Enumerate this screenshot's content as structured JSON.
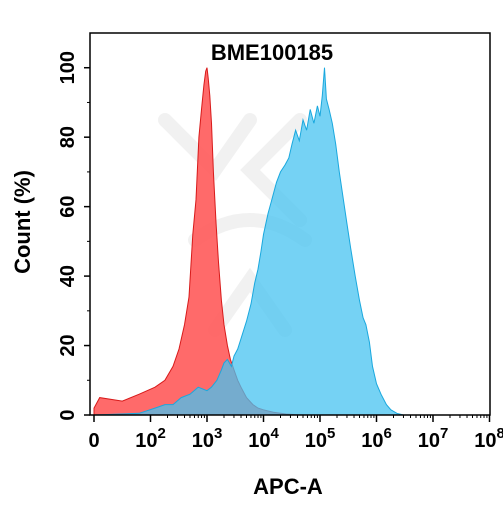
{
  "chart_data": {
    "type": "area",
    "title": "BME100185",
    "xlabel": "APC-A",
    "ylabel": "Count (%)",
    "xscale": "biexponential",
    "xlim": [
      0,
      100000000
    ],
    "ylim": [
      0,
      110
    ],
    "x_ticks": [
      {
        "value": 0,
        "base": "0",
        "exp": ""
      },
      {
        "value": 100,
        "base": "10",
        "exp": "2"
      },
      {
        "value": 1000,
        "base": "10",
        "exp": "3"
      },
      {
        "value": 10000,
        "base": "10",
        "exp": "4"
      },
      {
        "value": 100000,
        "base": "10",
        "exp": "5"
      },
      {
        "value": 1000000,
        "base": "10",
        "exp": "6"
      },
      {
        "value": 10000000,
        "base": "10",
        "exp": "7"
      },
      {
        "value": 100000000,
        "base": "10",
        "exp": "8"
      }
    ],
    "y_ticks": [
      0,
      20,
      40,
      60,
      80,
      100
    ],
    "grid": false,
    "series": [
      {
        "color": "#ff5a5a",
        "stroke": "#d81a1a",
        "points": [
          [
            0,
            2
          ],
          [
            10,
            5
          ],
          [
            50,
            4
          ],
          [
            80,
            6
          ],
          [
            120,
            8
          ],
          [
            180,
            10
          ],
          [
            250,
            14
          ],
          [
            320,
            19
          ],
          [
            400,
            26
          ],
          [
            480,
            34
          ],
          [
            560,
            52
          ],
          [
            640,
            62
          ],
          [
            720,
            80
          ],
          [
            800,
            88
          ],
          [
            880,
            95
          ],
          [
            950,
            99
          ],
          [
            1000,
            100
          ],
          [
            1050,
            97
          ],
          [
            1120,
            92
          ],
          [
            1200,
            84
          ],
          [
            1300,
            70
          ],
          [
            1450,
            55
          ],
          [
            1600,
            44
          ],
          [
            1800,
            33
          ],
          [
            2000,
            26
          ],
          [
            2300,
            20
          ],
          [
            2600,
            16
          ],
          [
            3000,
            13
          ],
          [
            3500,
            10
          ],
          [
            4000,
            8
          ],
          [
            5000,
            5
          ],
          [
            6500,
            3
          ],
          [
            8000,
            2
          ],
          [
            10000,
            1.5
          ],
          [
            15000,
            0.8
          ],
          [
            25000,
            0.3
          ],
          [
            40000,
            0.1
          ],
          [
            60000,
            0
          ]
        ]
      },
      {
        "color": "#47c3f0",
        "stroke": "#1aa8de",
        "points": [
          [
            0,
            0
          ],
          [
            80,
            0.5
          ],
          [
            120,
            2
          ],
          [
            180,
            3
          ],
          [
            250,
            3
          ],
          [
            350,
            5
          ],
          [
            500,
            6
          ],
          [
            700,
            8
          ],
          [
            1000,
            7
          ],
          [
            1200,
            8
          ],
          [
            1500,
            10
          ],
          [
            1800,
            13
          ],
          [
            2000,
            15
          ],
          [
            2300,
            16
          ],
          [
            2700,
            14
          ],
          [
            3000,
            17
          ],
          [
            3500,
            19
          ],
          [
            4000,
            22
          ],
          [
            5000,
            27
          ],
          [
            6000,
            32
          ],
          [
            7000,
            38
          ],
          [
            8000,
            42
          ],
          [
            9000,
            47
          ],
          [
            10000,
            52
          ],
          [
            12000,
            58
          ],
          [
            14000,
            62
          ],
          [
            17000,
            67
          ],
          [
            20000,
            70
          ],
          [
            24000,
            72
          ],
          [
            28000,
            74
          ],
          [
            32000,
            78
          ],
          [
            37000,
            82
          ],
          [
            43000,
            79
          ],
          [
            50000,
            85
          ],
          [
            58000,
            82
          ],
          [
            67000,
            88
          ],
          [
            78000,
            84
          ],
          [
            90000,
            89
          ],
          [
            100000,
            86
          ],
          [
            110000,
            92
          ],
          [
            120000,
            100
          ],
          [
            130000,
            91
          ],
          [
            145000,
            88
          ],
          [
            165000,
            84
          ],
          [
            190000,
            78
          ],
          [
            220000,
            70
          ],
          [
            260000,
            62
          ],
          [
            300000,
            55
          ],
          [
            350000,
            48
          ],
          [
            420000,
            40
          ],
          [
            500000,
            33
          ],
          [
            580000,
            28
          ],
          [
            650000,
            26
          ],
          [
            750000,
            21
          ],
          [
            850000,
            14
          ],
          [
            1000000,
            9
          ],
          [
            1200000,
            6
          ],
          [
            1500000,
            3
          ],
          [
            1800000,
            1.5
          ],
          [
            2300000,
            0.5
          ],
          [
            3000000,
            0
          ],
          [
            100000000,
            0
          ]
        ]
      }
    ]
  }
}
